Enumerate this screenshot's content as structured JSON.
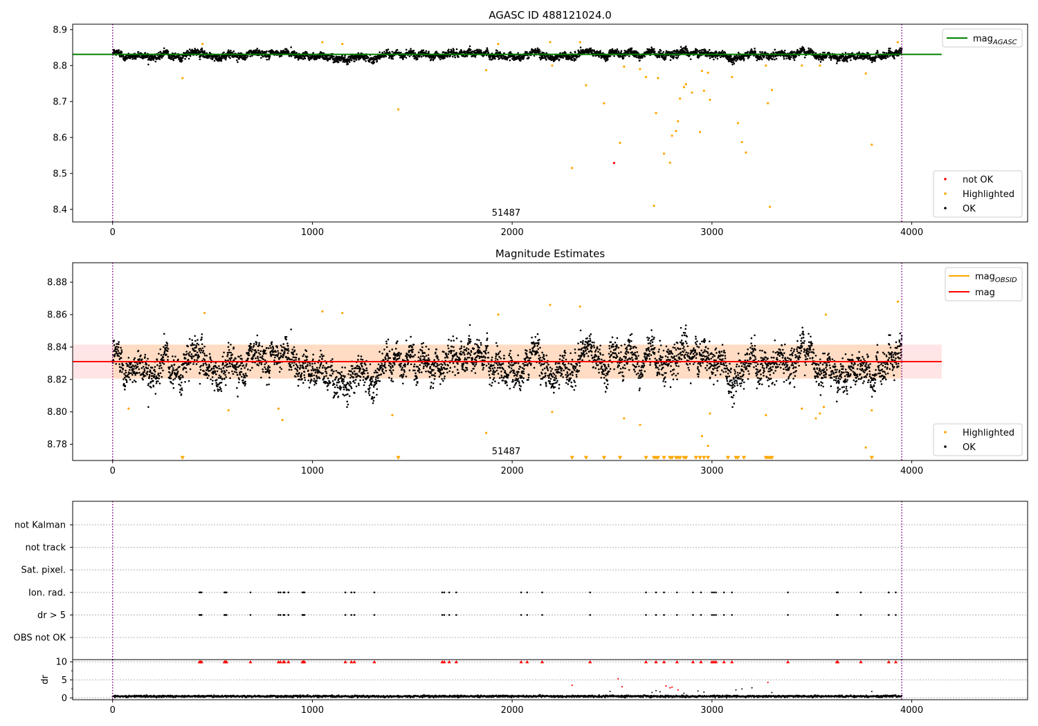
{
  "figure": {
    "obsid_label": "51487"
  },
  "chart_data": [
    {
      "id": "p1",
      "type": "scatter",
      "title": "AGASC ID 488121024.0",
      "xlim": [
        -200,
        4580
      ],
      "ylim": [
        8.365,
        8.915
      ],
      "xticks": [
        0,
        1000,
        2000,
        3000,
        4000
      ],
      "yticks": [
        8.4,
        8.5,
        8.6,
        8.7,
        8.8,
        8.9
      ],
      "ytick_labels": [
        "8.4",
        "8.5",
        "8.6",
        "8.7",
        "8.8",
        "8.9"
      ],
      "obs_boundaries": [
        0,
        3950
      ],
      "obsid_label_x": 1970,
      "mag_agasc": 8.831,
      "mag_agasc_xrange": [
        -200,
        4150
      ],
      "ok_series": {
        "name": "OK",
        "n": 3950,
        "x_range": [
          0,
          3950
        ],
        "mean": 8.831,
        "spread": 0.009
      },
      "highlighted_points": [
        [
          350,
          8.765
        ],
        [
          450,
          8.86
        ],
        [
          1050,
          8.865
        ],
        [
          1150,
          8.86
        ],
        [
          1430,
          8.678
        ],
        [
          1870,
          8.787
        ],
        [
          1930,
          8.86
        ],
        [
          2190,
          8.865
        ],
        [
          2200,
          8.8
        ],
        [
          2300,
          8.515
        ],
        [
          2340,
          8.865
        ],
        [
          2370,
          8.745
        ],
        [
          2460,
          8.695
        ],
        [
          2540,
          8.585
        ],
        [
          2560,
          8.797
        ],
        [
          2640,
          8.79
        ],
        [
          2670,
          8.768
        ],
        [
          2710,
          8.41
        ],
        [
          2720,
          8.668
        ],
        [
          2730,
          8.765
        ],
        [
          2760,
          8.555
        ],
        [
          2790,
          8.53
        ],
        [
          2800,
          8.605
        ],
        [
          2820,
          8.618
        ],
        [
          2830,
          8.645
        ],
        [
          2840,
          8.708
        ],
        [
          2860,
          8.74
        ],
        [
          2870,
          8.748
        ],
        [
          2900,
          8.725
        ],
        [
          2940,
          8.615
        ],
        [
          2950,
          8.785
        ],
        [
          2960,
          8.73
        ],
        [
          2980,
          8.78
        ],
        [
          2990,
          8.705
        ],
        [
          3100,
          8.768
        ],
        [
          3130,
          8.64
        ],
        [
          3150,
          8.587
        ],
        [
          3170,
          8.558
        ],
        [
          3270,
          8.8
        ],
        [
          3280,
          8.695
        ],
        [
          3290,
          8.407
        ],
        [
          3300,
          8.732
        ],
        [
          3450,
          8.8
        ],
        [
          3540,
          8.8
        ],
        [
          3770,
          8.778
        ],
        [
          3800,
          8.58
        ],
        [
          3930,
          8.865
        ]
      ],
      "not_ok_points": [
        [
          2510,
          8.529
        ]
      ],
      "legend_lines": [
        {
          "label": "mag",
          "sub": "AGASC",
          "color": "#008000"
        }
      ],
      "legend_markers": [
        {
          "label": "not OK",
          "color": "#ff0000"
        },
        {
          "label": "Highlighted",
          "color": "#ffa500"
        },
        {
          "label": "OK",
          "color": "#000000"
        }
      ]
    },
    {
      "id": "p2",
      "type": "scatter",
      "title": "Magnitude Estimates",
      "xlim": [
        -200,
        4580
      ],
      "ylim": [
        8.77,
        8.892
      ],
      "xticks": [
        0,
        1000,
        2000,
        3000,
        4000
      ],
      "yticks": [
        8.78,
        8.8,
        8.82,
        8.84,
        8.86,
        8.88
      ],
      "ytick_labels": [
        "8.78",
        "8.80",
        "8.82",
        "8.84",
        "8.86",
        "8.88"
      ],
      "obs_boundaries": [
        0,
        3950
      ],
      "obsid_label_x": 1970,
      "mag": 8.831,
      "mag_band": [
        8.8205,
        8.8415
      ],
      "mag_xrange": [
        -200,
        4150
      ],
      "mag_obsid": 8.831,
      "mag_obsid_band": [
        8.8205,
        8.8415
      ],
      "mag_obsid_xrange": [
        0,
        3950
      ],
      "highlighted_points": [
        [
          80,
          8.802
        ],
        [
          460,
          8.861
        ],
        [
          580,
          8.801
        ],
        [
          830,
          8.802
        ],
        [
          850,
          8.795
        ],
        [
          1400,
          8.798
        ],
        [
          1050,
          8.862
        ],
        [
          1150,
          8.861
        ],
        [
          1870,
          8.787
        ],
        [
          1930,
          8.86
        ],
        [
          2190,
          8.866
        ],
        [
          2200,
          8.8
        ],
        [
          2340,
          8.865
        ],
        [
          2560,
          8.796
        ],
        [
          2640,
          8.792
        ],
        [
          2950,
          8.785
        ],
        [
          2980,
          8.779
        ],
        [
          2990,
          8.799
        ],
        [
          3270,
          8.798
        ],
        [
          3450,
          8.802
        ],
        [
          3520,
          8.796
        ],
        [
          3540,
          8.799
        ],
        [
          3560,
          8.803
        ],
        [
          3570,
          8.86
        ],
        [
          3770,
          8.778
        ],
        [
          3800,
          8.801
        ],
        [
          3930,
          8.868
        ]
      ],
      "lower_clip_markers_x": [
        350,
        1430,
        2300,
        2370,
        2460,
        2540,
        2670,
        2710,
        2720,
        2730,
        2760,
        2790,
        2800,
        2820,
        2830,
        2840,
        2860,
        2870,
        2920,
        2940,
        2960,
        2980,
        3080,
        3120,
        3130,
        3160,
        3270,
        3280,
        3290,
        3300,
        3800
      ],
      "legend_lines": [
        {
          "label": "mag",
          "sub": "OBSID",
          "color": "#ffa500"
        },
        {
          "label": "mag",
          "sub": "",
          "color": "#ff0000"
        }
      ],
      "legend_markers": [
        {
          "label": "Highlighted",
          "color": "#ffa500"
        },
        {
          "label": "OK",
          "color": "#000000"
        }
      ]
    },
    {
      "id": "p3",
      "type": "scatter",
      "title": "",
      "xlim": [
        -200,
        4580
      ],
      "categories": [
        "not Kalman",
        "not track",
        "Sat. pixel.",
        "Ion. rad.",
        "dr > 5",
        "OBS not OK"
      ],
      "obs_boundaries": [
        0,
        3950
      ],
      "flag_events_x": [
        435,
        440,
        445,
        560,
        565,
        570,
        690,
        830,
        840,
        855,
        860,
        880,
        950,
        955,
        960,
        1165,
        1195,
        1210,
        1310,
        1650,
        1660,
        1685,
        1720,
        2045,
        2075,
        2150,
        2390,
        2670,
        2720,
        2760,
        2825,
        2905,
        2945,
        3000,
        3010,
        3020,
        3060,
        3100,
        3380,
        3625,
        3630,
        3745,
        3885,
        3920
      ]
    },
    {
      "id": "p4",
      "type": "scatter",
      "ylabel": "dr",
      "xlim": [
        -200,
        4580
      ],
      "ylim": [
        -0.5,
        10.6
      ],
      "xticks": [
        0,
        1000,
        2000,
        3000,
        4000
      ],
      "yticks": [
        0,
        5,
        10
      ],
      "ytick_labels": [
        "0",
        "5",
        "10"
      ],
      "obs_boundaries": [
        0,
        3950
      ],
      "base_series": {
        "n": 2400,
        "x_range": [
          0,
          3950
        ],
        "mean": 0.45,
        "spread": 0.25
      },
      "red_scatter": [
        [
          2300,
          3.5
        ],
        [
          2530,
          5.3
        ],
        [
          2550,
          3.1
        ],
        [
          2770,
          3.3
        ],
        [
          2790,
          2.8
        ],
        [
          2800,
          3.0
        ],
        [
          2830,
          2.2
        ],
        [
          3280,
          4.3
        ]
      ],
      "black_scatter": [
        [
          2490,
          1.8
        ],
        [
          2700,
          1.5
        ],
        [
          2720,
          2.0
        ],
        [
          2740,
          1.7
        ],
        [
          2860,
          1.3
        ],
        [
          2930,
          1.9
        ],
        [
          2960,
          1.6
        ],
        [
          3120,
          2.2
        ],
        [
          3150,
          2.5
        ],
        [
          3200,
          2.8
        ],
        [
          3300,
          1.5
        ],
        [
          3800,
          1.8
        ]
      ],
      "clip_markers_x": [
        435,
        440,
        445,
        560,
        565,
        570,
        690,
        830,
        840,
        855,
        860,
        880,
        950,
        955,
        960,
        1165,
        1195,
        1210,
        1310,
        1650,
        1660,
        1685,
        1720,
        2045,
        2075,
        2150,
        2390,
        2670,
        2720,
        2760,
        2825,
        2905,
        2945,
        3000,
        3010,
        3020,
        3060,
        3100,
        3380,
        3625,
        3630,
        3745,
        3885,
        3920
      ]
    }
  ]
}
